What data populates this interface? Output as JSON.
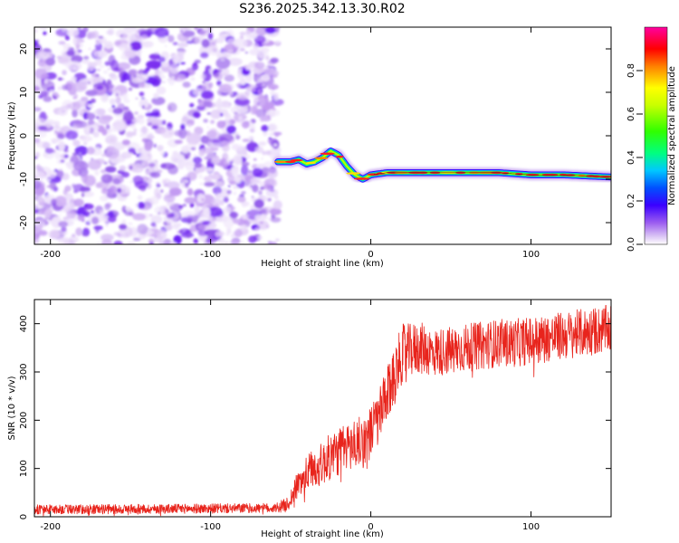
{
  "title": "S236.2025.342.13.30.R02",
  "chart_data": [
    {
      "type": "heatmap",
      "title": "S236.2025.342.13.30.R02",
      "xlabel": "Height of straight line (km)",
      "ylabel": "Frequency (Hz)",
      "xlim": [
        -210,
        150
      ],
      "ylim": [
        -25,
        25
      ],
      "xticks": [
        -200,
        -100,
        0,
        100
      ],
      "yticks": [
        20,
        10,
        0,
        -10,
        -20
      ],
      "xtick_labels": [
        "-200",
        "-100",
        "0",
        "100"
      ],
      "ytick_labels": [
        "20",
        "10",
        "0",
        "-10",
        "-20"
      ],
      "noise_region_x": [
        -210,
        -58
      ],
      "ridge": {
        "x": [
          -58,
          -50,
          -45,
          -40,
          -35,
          -30,
          -25,
          -20,
          -15,
          -10,
          -5,
          0,
          10,
          20,
          30,
          40,
          60,
          80,
          100,
          120,
          150
        ],
        "y": [
          -6,
          -6,
          -5.5,
          -6.5,
          -6,
          -5,
          -3.5,
          -4.5,
          -7,
          -9,
          -10,
          -9,
          -8.5,
          -8.5,
          -8.5,
          -8.5,
          -8.5,
          -8.5,
          -9,
          -9,
          -9.5
        ]
      },
      "colorbar": {
        "label": "Normalized spectral amplitude",
        "range": [
          0.0,
          1.0
        ],
        "ticks": [
          0.0,
          0.2,
          0.4,
          0.6,
          0.8
        ],
        "tick_labels": [
          "0.0",
          "0.2",
          "0.4",
          "0.6",
          "0.8"
        ]
      }
    },
    {
      "type": "line",
      "xlabel": "Height of straight line (km)",
      "ylabel": "SNR (10 * v/v)",
      "xlim": [
        -210,
        150
      ],
      "ylim": [
        0,
        450
      ],
      "xticks": [
        -200,
        -100,
        0,
        100
      ],
      "yticks": [
        0,
        100,
        200,
        300,
        400
      ],
      "xtick_labels": [
        "-200",
        "-100",
        "0",
        "100"
      ],
      "ytick_labels": [
        "0",
        "100",
        "200",
        "300",
        "400"
      ],
      "series": [
        {
          "name": "SNR",
          "color": "#e8241c",
          "x": [
            -210,
            -150,
            -100,
            -60,
            -52,
            -45,
            -38,
            -30,
            -25,
            -20,
            -15,
            -10,
            -5,
            0,
            5,
            10,
            15,
            20,
            25,
            30,
            40,
            50,
            60,
            70,
            80,
            90,
            100,
            110,
            120,
            130,
            140,
            150
          ],
          "mean": [
            15,
            16,
            17,
            18,
            25,
            70,
            95,
            110,
            125,
            135,
            145,
            150,
            155,
            175,
            205,
            245,
            300,
            340,
            345,
            350,
            340,
            345,
            350,
            355,
            360,
            360,
            365,
            370,
            375,
            380,
            385,
            390
          ],
          "noise": [
            10,
            10,
            10,
            10,
            15,
            30,
            40,
            45,
            50,
            50,
            50,
            55,
            55,
            55,
            60,
            60,
            60,
            60,
            55,
            55,
            50,
            50,
            50,
            50,
            50,
            50,
            50,
            50,
            50,
            50,
            50,
            50
          ]
        }
      ]
    }
  ]
}
